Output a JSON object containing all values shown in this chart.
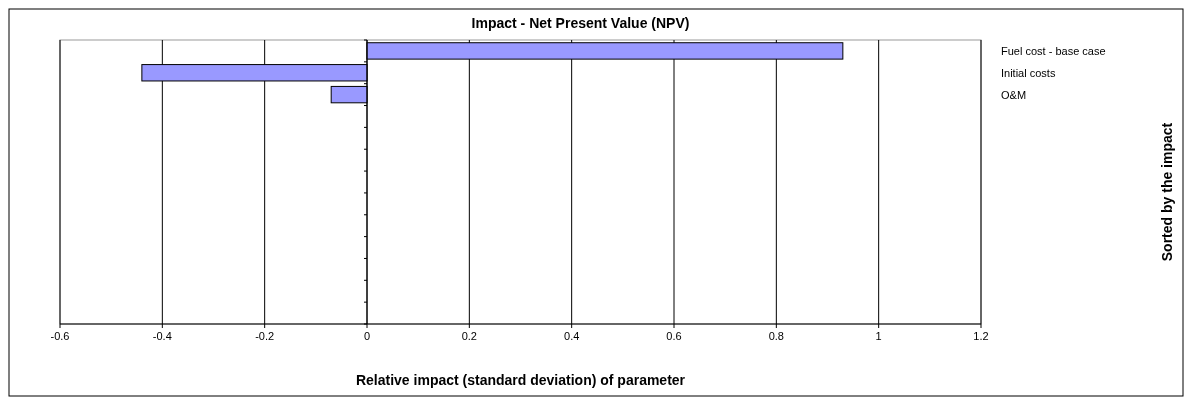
{
  "chart_data": {
    "type": "bar",
    "orientation": "horizontal",
    "title": "Impact - Net Present Value (NPV)",
    "xlabel": "Relative impact (standard deviation) of parameter",
    "ylabel": "Sorted by the impact",
    "categories": [
      "Fuel cost - base case",
      "Initial costs",
      "O&M",
      null,
      null,
      null,
      null,
      null,
      null,
      null,
      null,
      null,
      null
    ],
    "values": [
      0.93,
      -0.44,
      -0.07,
      null,
      null,
      null,
      null,
      null,
      null,
      null,
      null,
      null,
      null
    ],
    "color": "#9999ff",
    "xlim": [
      -0.6,
      1.2
    ],
    "xticks": [
      -0.6,
      -0.4,
      -0.2,
      0,
      0.2,
      0.4,
      0.6,
      0.8,
      1,
      1.2
    ],
    "grid": "x"
  }
}
